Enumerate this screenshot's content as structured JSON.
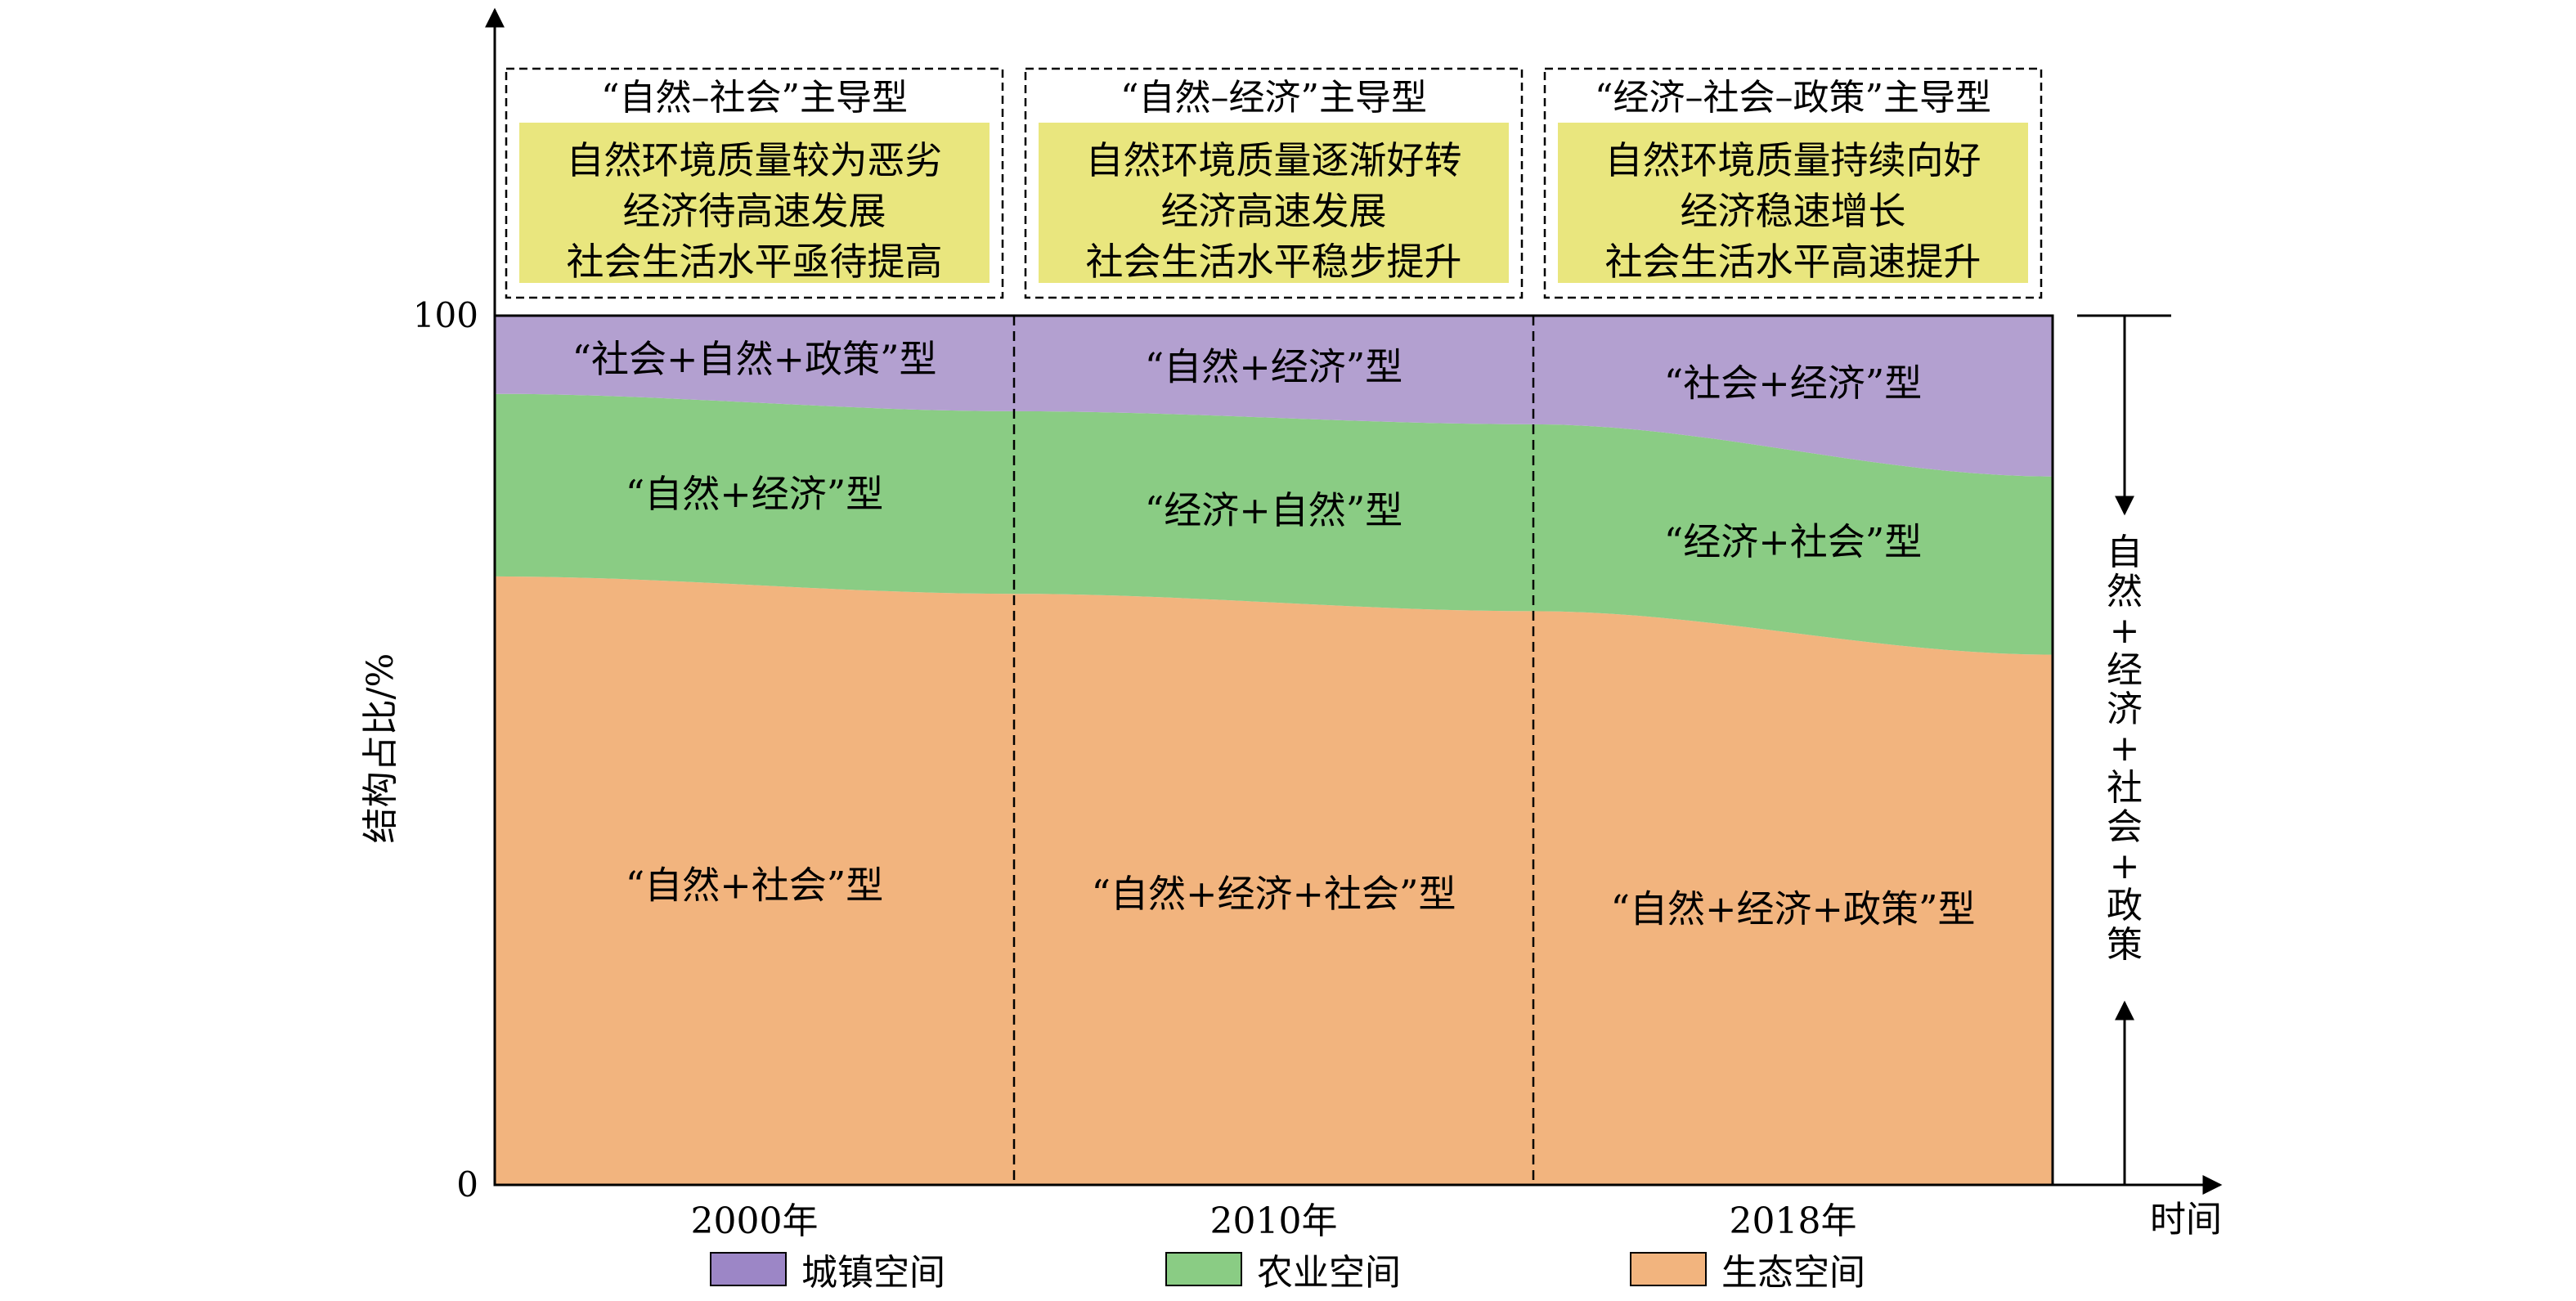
{
  "chart_data": {
    "type": "area",
    "stacked": true,
    "ylabel": "结构占比/%",
    "xlabel": "时间",
    "y_ticks": [
      "0",
      "100"
    ],
    "ylim": [
      0,
      100
    ],
    "categories": [
      "2000年",
      "2010年",
      "2018年"
    ],
    "x_boundaries": [
      0,
      1,
      2,
      3
    ],
    "series": [
      {
        "name": "生态空间",
        "color": "#F2B47E",
        "x": [
          0,
          1,
          2,
          3
        ],
        "values": [
          70,
          68,
          66,
          61
        ],
        "labels": [
          "“自然+社会”型",
          "“自然+经济+社会”型",
          "“自然+经济+政策”型"
        ]
      },
      {
        "name": "农业空间",
        "color": "#8ACC84",
        "x": [
          0,
          1,
          2,
          3
        ],
        "values": [
          21,
          21,
          21.5,
          20.5
        ],
        "labels": [
          "“自然+经济”型",
          "“经济+自然”型",
          "“经济+社会”型"
        ]
      },
      {
        "name": "城镇空间",
        "color": "#B3A0D0",
        "x": [
          0,
          1,
          2,
          3
        ],
        "values": [
          9,
          11,
          12.5,
          18.5
        ],
        "labels": [
          "“社会+自然+政策”型",
          "“自然+经济”型",
          "“社会+经济”型"
        ]
      }
    ],
    "stage_boxes": [
      {
        "title": "“自然–社会”主导型",
        "lines": [
          "自然环境质量较为恶劣",
          "经济待高速发展",
          "社会生活水平亟待提高"
        ]
      },
      {
        "title": "“自然–经济”主导型",
        "lines": [
          "自然环境质量逐渐好转",
          "经济高速发展",
          "社会生活水平稳步提升"
        ]
      },
      {
        "title": "“经济–社会–政策”主导型",
        "lines": [
          "自然环境质量持续向好",
          "经济稳速增长",
          "社会生活水平高速提升"
        ]
      }
    ],
    "side_label": [
      "自",
      "然",
      "+",
      "经",
      "济",
      "+",
      "社",
      "会",
      "+",
      "政",
      "策"
    ],
    "legend": [
      {
        "name": "城镇空间",
        "color": "#9C86C6"
      },
      {
        "name": "农业空间",
        "color": "#8ACC84"
      },
      {
        "name": "生态空间",
        "color": "#F2B47E"
      }
    ],
    "grid": false,
    "box_fill": "#E9E67E"
  }
}
